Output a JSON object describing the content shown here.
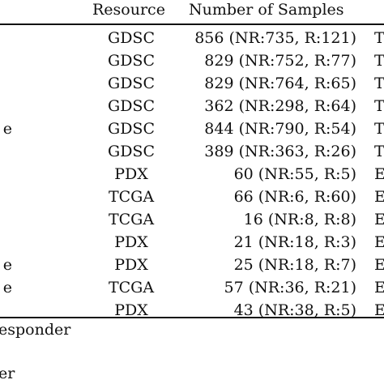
{
  "header": {
    "resource": "Resource",
    "samples": "Number of Samples"
  },
  "rows": [
    {
      "left": "",
      "resource": "GDSC",
      "samples": "856 (NR:735, R:121)",
      "right": "T"
    },
    {
      "left": "",
      "resource": "GDSC",
      "samples": "829 (NR:752, R:77)",
      "right": "T"
    },
    {
      "left": "",
      "resource": "GDSC",
      "samples": "829 (NR:764, R:65)",
      "right": "T"
    },
    {
      "left": "",
      "resource": "GDSC",
      "samples": "362 (NR:298, R:64)",
      "right": "T"
    },
    {
      "left": "e",
      "resource": "GDSC",
      "samples": "844 (NR:790, R:54)",
      "right": "T"
    },
    {
      "left": "",
      "resource": "GDSC",
      "samples": "389 (NR:363, R:26)",
      "right": "T"
    },
    {
      "left": "",
      "resource": "PDX",
      "samples": "60 (NR:55, R:5)",
      "right": "E"
    },
    {
      "left": "",
      "resource": "TCGA",
      "samples": "66 (NR:6, R:60)",
      "right": "E"
    },
    {
      "left": "",
      "resource": "TCGA",
      "samples": "16 (NR:8, R:8)",
      "right": "E"
    },
    {
      "left": "",
      "resource": "PDX",
      "samples": "21 (NR:18, R:3)",
      "right": "E"
    },
    {
      "left": "e",
      "resource": "PDX",
      "samples": "25 (NR:18, R:7)",
      "right": "E"
    },
    {
      "left": "e",
      "resource": "TCGA",
      "samples": "57 (NR:36, R:21)",
      "right": "E"
    },
    {
      "left": "",
      "resource": "PDX",
      "samples": "43 (NR:38, R:5)",
      "right": "E"
    }
  ],
  "notes": {
    "line1": "esponder",
    "line2": "er"
  }
}
